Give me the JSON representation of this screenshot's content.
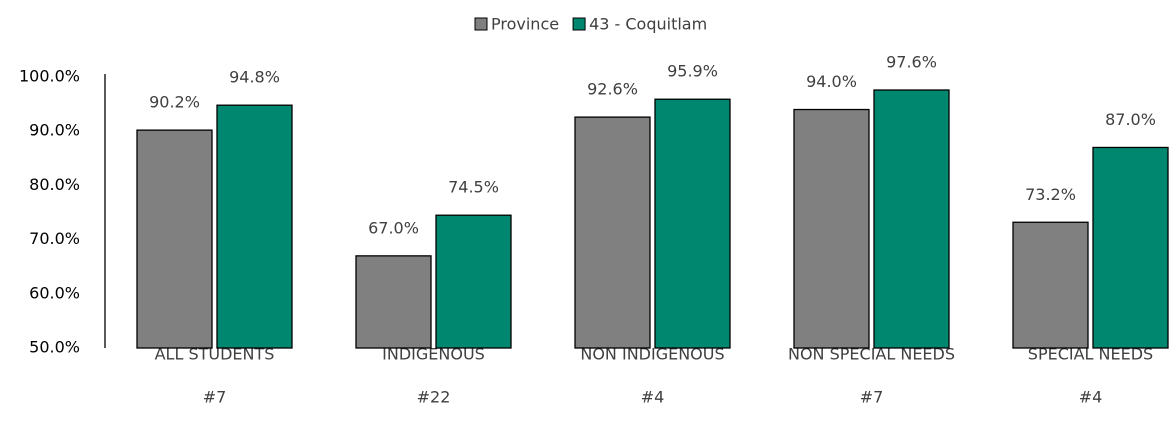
{
  "chart_data": {
    "type": "bar",
    "categories": [
      "ALL STUDENTS",
      "INDIGENOUS",
      "NON INDIGENOUS",
      "NON SPECIAL NEEDS",
      "SPECIAL NEEDS"
    ],
    "category_ranks": [
      "#7",
      "#22",
      "#4",
      "#7",
      "#4"
    ],
    "series": [
      {
        "name": "Province",
        "color": "#808080",
        "values": [
          90.2,
          67.0,
          92.6,
          94.0,
          73.2
        ],
        "value_labels": [
          "90.2%",
          "67.0%",
          "92.6%",
          "94.0%",
          "73.2%"
        ]
      },
      {
        "name": "43 - Coquitlam",
        "color": "#00876f",
        "values": [
          94.8,
          74.5,
          95.9,
          97.6,
          87.0
        ],
        "value_labels": [
          "94.8%",
          "74.5%",
          "95.9%",
          "97.6%",
          "87.0%"
        ]
      }
    ],
    "ylim": [
      50,
      100
    ],
    "yticks": [
      {
        "value": 50,
        "label": "50.0%"
      },
      {
        "value": 60,
        "label": "60.0%"
      },
      {
        "value": 70,
        "label": "70.0%"
      },
      {
        "value": 80,
        "label": "80.0%"
      },
      {
        "value": 90,
        "label": "90.0%"
      },
      {
        "value": 100,
        "label": "100.0%"
      }
    ],
    "legend": "top",
    "grid": false
  }
}
